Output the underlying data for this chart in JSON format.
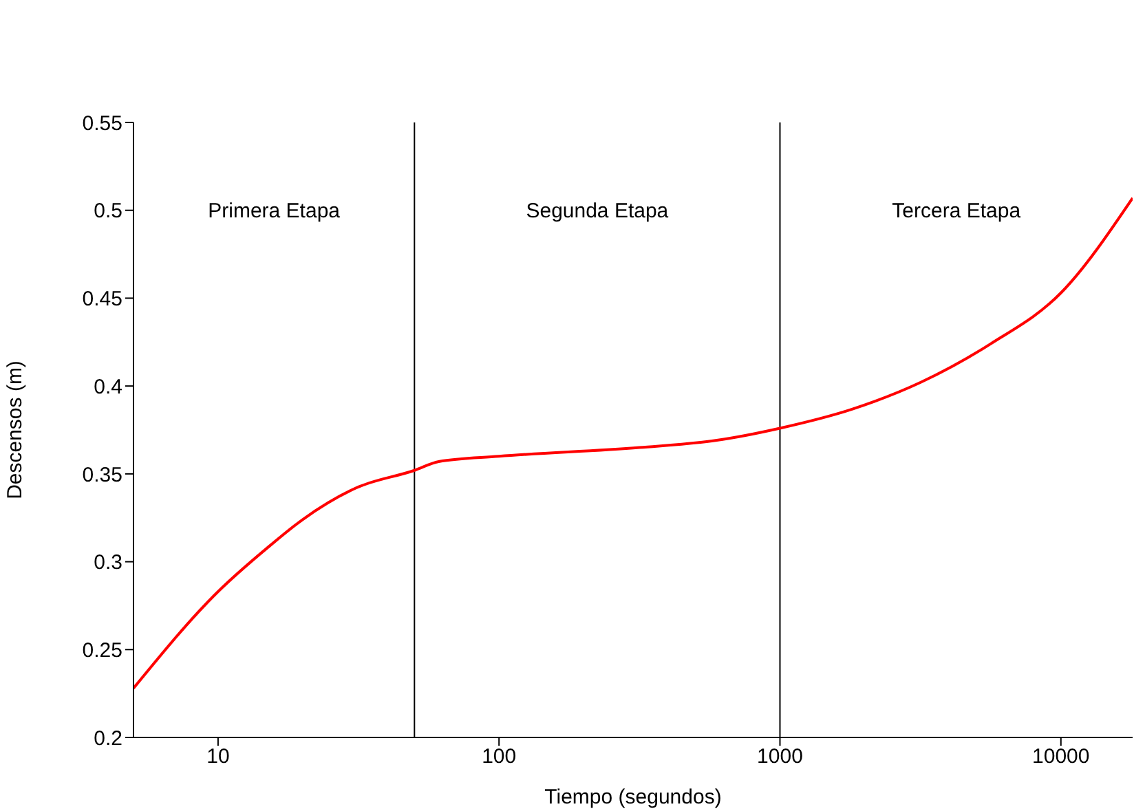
{
  "chart_data": {
    "type": "line",
    "xlabel": "Tiempo (segundos)",
    "ylabel": "Descensos (m)",
    "log": "x",
    "legend": false,
    "marker": "none",
    "line_style": "solid",
    "xlim": [
      5,
      18000
    ],
    "xticks": [
      10,
      100,
      1000,
      10000
    ],
    "ylim": [
      0.2,
      0.55
    ],
    "yticks": [
      0.2,
      0.25,
      0.3,
      0.35,
      0.4,
      0.45,
      0.5,
      0.55
    ],
    "series": [
      {
        "color": "#ff0000",
        "x": [
          5,
          10,
          15,
          20,
          31,
          50,
          61,
          100,
          316,
          590,
          1000,
          1820,
          3160,
          5620,
          10000,
          18000
        ],
        "values": [
          0.228,
          0.283,
          0.308,
          0.324,
          0.342,
          0.352,
          0.357,
          0.36,
          0.365,
          0.369,
          0.376,
          0.387,
          0.402,
          0.424,
          0.453,
          0.507
        ]
      }
    ],
    "ref_lines": [
      {
        "axis": "x",
        "value": 50,
        "color": "#000000"
      },
      {
        "axis": "x",
        "value": 1000,
        "color": "#000000"
      }
    ],
    "annotations": [
      "Primera Etapa",
      "Segunda Etapa",
      "Tercera Etapa"
    ]
  }
}
